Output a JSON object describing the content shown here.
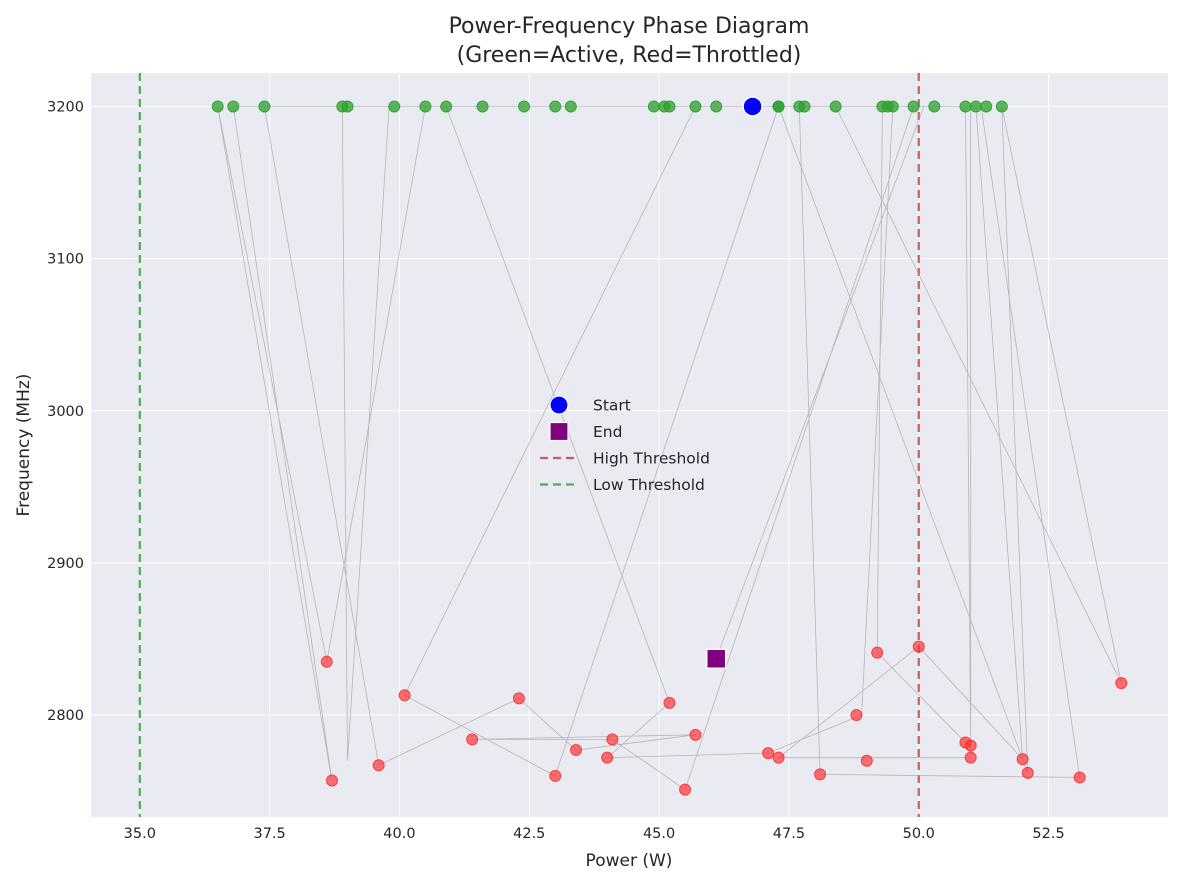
{
  "chart_data": {
    "type": "scatter",
    "title_lines": [
      "Power-Frequency Phase Diagram",
      "(Green=Active, Red=Throttled)"
    ],
    "xlabel": "Power (W)",
    "ylabel": "Frequency (MHz)",
    "xlim": [
      34.06,
      54.8
    ],
    "ylim": [
      2733,
      3222
    ],
    "x_ticks": [
      35.0,
      37.5,
      40.0,
      42.5,
      45.0,
      47.5,
      50.0,
      52.5
    ],
    "x_tick_labels": [
      "35.0",
      "37.5",
      "40.0",
      "42.5",
      "45.0",
      "47.5",
      "50.0",
      "52.5"
    ],
    "y_ticks": [
      2800,
      2900,
      3000,
      3100,
      3200
    ],
    "y_tick_labels": [
      "2800",
      "2900",
      "3000",
      "3100",
      "3200"
    ],
    "grid": true,
    "background": "#eaeaf2",
    "colors": {
      "active": "#2ca02c",
      "throttled": "#ff2a2a",
      "start": "#0000ff",
      "end": "#800080",
      "high_threshold": "#cd5c5c",
      "low_threshold": "#4caf50",
      "trajectory": "#a0a0a0"
    },
    "trajectory": [
      [
        46.8,
        3200
      ],
      [
        46.1,
        3200
      ],
      [
        49.9,
        3200
      ],
      [
        36.8,
        3200
      ],
      [
        38.7,
        2757
      ],
      [
        36.5,
        3200
      ],
      [
        38.6,
        2835
      ],
      [
        40.5,
        3200
      ],
      [
        42.9,
        3200
      ],
      [
        45.7,
        3200
      ],
      [
        40.1,
        2813
      ],
      [
        43.0,
        2760
      ],
      [
        47.3,
        3200
      ],
      [
        52.1,
        2762
      ],
      [
        51.6,
        3200
      ],
      [
        53.9,
        2821
      ],
      [
        48.4,
        3200
      ],
      [
        41.6,
        3200
      ],
      [
        47.7,
        3200
      ],
      [
        37.4,
        3200
      ],
      [
        39.6,
        2767
      ],
      [
        42.3,
        2811
      ],
      [
        43.4,
        2777
      ],
      [
        45.7,
        2787
      ],
      [
        41.4,
        2784
      ],
      [
        44.1,
        2784
      ],
      [
        45.5,
        2751
      ],
      [
        49.9,
        3200
      ],
      [
        51.1,
        3200
      ],
      [
        52.0,
        2771
      ],
      [
        50.0,
        2845
      ],
      [
        47.3,
        2772
      ],
      [
        51.0,
        2772
      ],
      [
        51.0,
        3200
      ],
      [
        50.9,
        3200
      ],
      [
        51.0,
        2780
      ],
      [
        50.9,
        2782
      ],
      [
        49.2,
        2841
      ],
      [
        49.3,
        3200
      ],
      [
        49.5,
        3200
      ],
      [
        48.9,
        2800
      ],
      [
        47.1,
        2775
      ],
      [
        44.0,
        2772
      ],
      [
        45.2,
        2808
      ],
      [
        40.9,
        3200
      ],
      [
        45.3,
        3200
      ],
      [
        43.3,
        3200
      ],
      [
        51.2,
        3200
      ],
      [
        53.1,
        2759
      ],
      [
        48.1,
        2761
      ],
      [
        47.7,
        3200
      ],
      [
        38.9,
        3200
      ],
      [
        39.0,
        2770
      ],
      [
        39.8,
        3200
      ],
      [
        50.3,
        3200
      ],
      [
        49.4,
        3200
      ],
      [
        50.1,
        3200
      ],
      [
        46.1,
        2837
      ]
    ],
    "active_points": [
      [
        36.5,
        3200
      ],
      [
        36.8,
        3200
      ],
      [
        37.4,
        3200
      ],
      [
        38.9,
        3200
      ],
      [
        39.0,
        3200
      ],
      [
        39.9,
        3200
      ],
      [
        40.5,
        3200
      ],
      [
        40.9,
        3200
      ],
      [
        41.6,
        3200
      ],
      [
        42.4,
        3200
      ],
      [
        43.0,
        3200
      ],
      [
        43.3,
        3200
      ],
      [
        44.9,
        3200
      ],
      [
        45.1,
        3200
      ],
      [
        45.2,
        3200
      ],
      [
        45.7,
        3200
      ],
      [
        46.1,
        3200
      ],
      [
        47.3,
        3200
      ],
      [
        47.3,
        3200
      ],
      [
        47.7,
        3200
      ],
      [
        47.8,
        3200
      ],
      [
        48.4,
        3200
      ],
      [
        49.3,
        3200
      ],
      [
        49.4,
        3200
      ],
      [
        49.5,
        3200
      ],
      [
        49.9,
        3200
      ],
      [
        50.3,
        3200
      ],
      [
        50.9,
        3200
      ],
      [
        51.1,
        3200
      ],
      [
        51.3,
        3200
      ],
      [
        51.6,
        3200
      ]
    ],
    "throttled_points": [
      [
        38.6,
        2835
      ],
      [
        38.7,
        2757
      ],
      [
        39.6,
        2767
      ],
      [
        40.1,
        2813
      ],
      [
        41.4,
        2784
      ],
      [
        42.3,
        2811
      ],
      [
        43.0,
        2760
      ],
      [
        43.4,
        2777
      ],
      [
        44.0,
        2772
      ],
      [
        44.1,
        2784
      ],
      [
        45.2,
        2808
      ],
      [
        45.5,
        2751
      ],
      [
        45.7,
        2787
      ],
      [
        47.1,
        2775
      ],
      [
        47.3,
        2772
      ],
      [
        48.1,
        2761
      ],
      [
        48.8,
        2800
      ],
      [
        49.0,
        2770
      ],
      [
        49.2,
        2841
      ],
      [
        50.0,
        2845
      ],
      [
        50.9,
        2782
      ],
      [
        51.0,
        2780
      ],
      [
        51.0,
        2772
      ],
      [
        52.0,
        2771
      ],
      [
        52.1,
        2762
      ],
      [
        53.1,
        2759
      ],
      [
        53.9,
        2821
      ]
    ],
    "start_point": [
      46.8,
      3200
    ],
    "end_point": [
      46.1,
      2837
    ],
    "high_threshold": 50.0,
    "low_threshold": 35.0,
    "legend_position": "center",
    "legend": [
      {
        "label": "Start",
        "marker": "circle",
        "color": "#0000ff"
      },
      {
        "label": "End",
        "marker": "square",
        "color": "#800080"
      },
      {
        "label": "High Threshold",
        "marker": "dashed-line",
        "color": "#cd5c5c"
      },
      {
        "label": "Low Threshold",
        "marker": "dashed-line",
        "color": "#4caf50"
      }
    ]
  }
}
